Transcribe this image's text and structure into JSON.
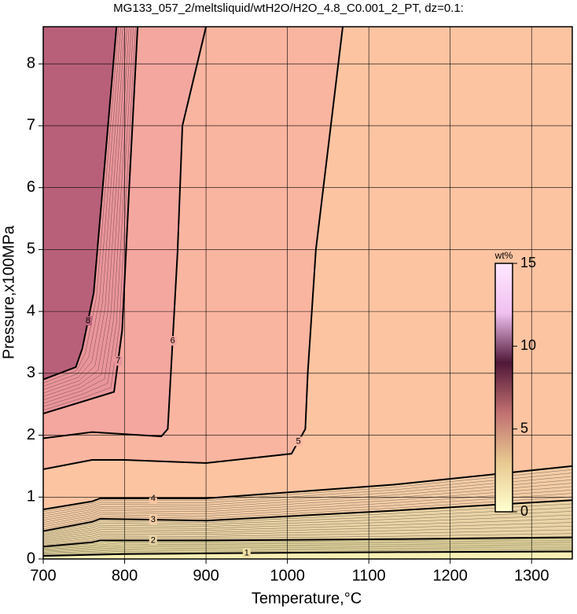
{
  "chart_data": {
    "type": "contour",
    "title": "MG133_057_2/meltsliquid/wtH2O/H2O_4.8_C0.001_2_PT, dz=0.1:",
    "x_label": "Temperature,°C",
    "y_label": "Pressure,x100MPa",
    "xlim": [
      700,
      1350
    ],
    "ylim": [
      0,
      8.6
    ],
    "xticks": [
      700,
      800,
      900,
      1000,
      1100,
      1200,
      1300
    ],
    "yticks": [
      0,
      1,
      2,
      3,
      4,
      5,
      6,
      7,
      8
    ],
    "grid": true,
    "background": "#f7efb4",
    "contours": [
      {
        "level": 1,
        "color": "#eedfa6",
        "x": [
          700,
          800,
          900,
          1000,
          1130,
          1350
        ],
        "y": [
          0.05,
          0.08,
          0.09,
          0.1,
          0.11,
          0.12
        ]
      },
      {
        "level": 2,
        "color": "#ead3a6",
        "x": [
          700,
          760,
          770,
          900,
          1130,
          1350
        ],
        "y": [
          0.2,
          0.27,
          0.3,
          0.3,
          0.32,
          0.35
        ]
      },
      {
        "level": 3,
        "color": "#f3cca6",
        "x": [
          700,
          760,
          770,
          900,
          1130,
          1350
        ],
        "y": [
          0.45,
          0.6,
          0.65,
          0.62,
          0.78,
          0.95
        ]
      },
      {
        "level": 4,
        "color": "#fdc4a2",
        "x": [
          700,
          760,
          770,
          900,
          1130,
          1350
        ],
        "y": [
          0.8,
          0.93,
          0.98,
          0.98,
          1.2,
          1.5
        ]
      },
      {
        "level": 5,
        "color": "#fab5a0",
        "x": [
          1068,
          1035,
          1025,
          1022,
          1005,
          900,
          800,
          760,
          700
        ],
        "y": [
          8.6,
          5.0,
          3.0,
          2.1,
          1.7,
          1.55,
          1.6,
          1.6,
          1.45
        ]
      },
      {
        "level": 6,
        "color": "#f4a79f",
        "x": [
          900,
          871,
          865,
          853,
          845,
          760,
          700
        ],
        "y": [
          8.6,
          7.0,
          4.95,
          2.1,
          1.98,
          2.05,
          1.95
        ]
      },
      {
        "level": 7,
        "color": "#e9959a",
        "x": [
          816,
          806,
          797,
          787,
          750,
          700
        ],
        "y": [
          8.6,
          6.1,
          3.7,
          2.7,
          2.55,
          2.35
        ]
      },
      {
        "level": 8,
        "color": "#b8607a",
        "x": [
          790,
          775,
          762,
          748,
          740,
          700
        ],
        "y": [
          8.6,
          6.3,
          4.3,
          3.4,
          3.1,
          2.9
        ]
      }
    ],
    "colorbar": {
      "label": "wt%",
      "lim": [
        0,
        15
      ],
      "ticks": [
        0,
        5,
        10,
        15
      ],
      "colors": [
        "#ffffd0",
        "#e8c890",
        "#c07070",
        "#501838",
        "#f0c0f0",
        "#ffe8ff"
      ]
    }
  }
}
